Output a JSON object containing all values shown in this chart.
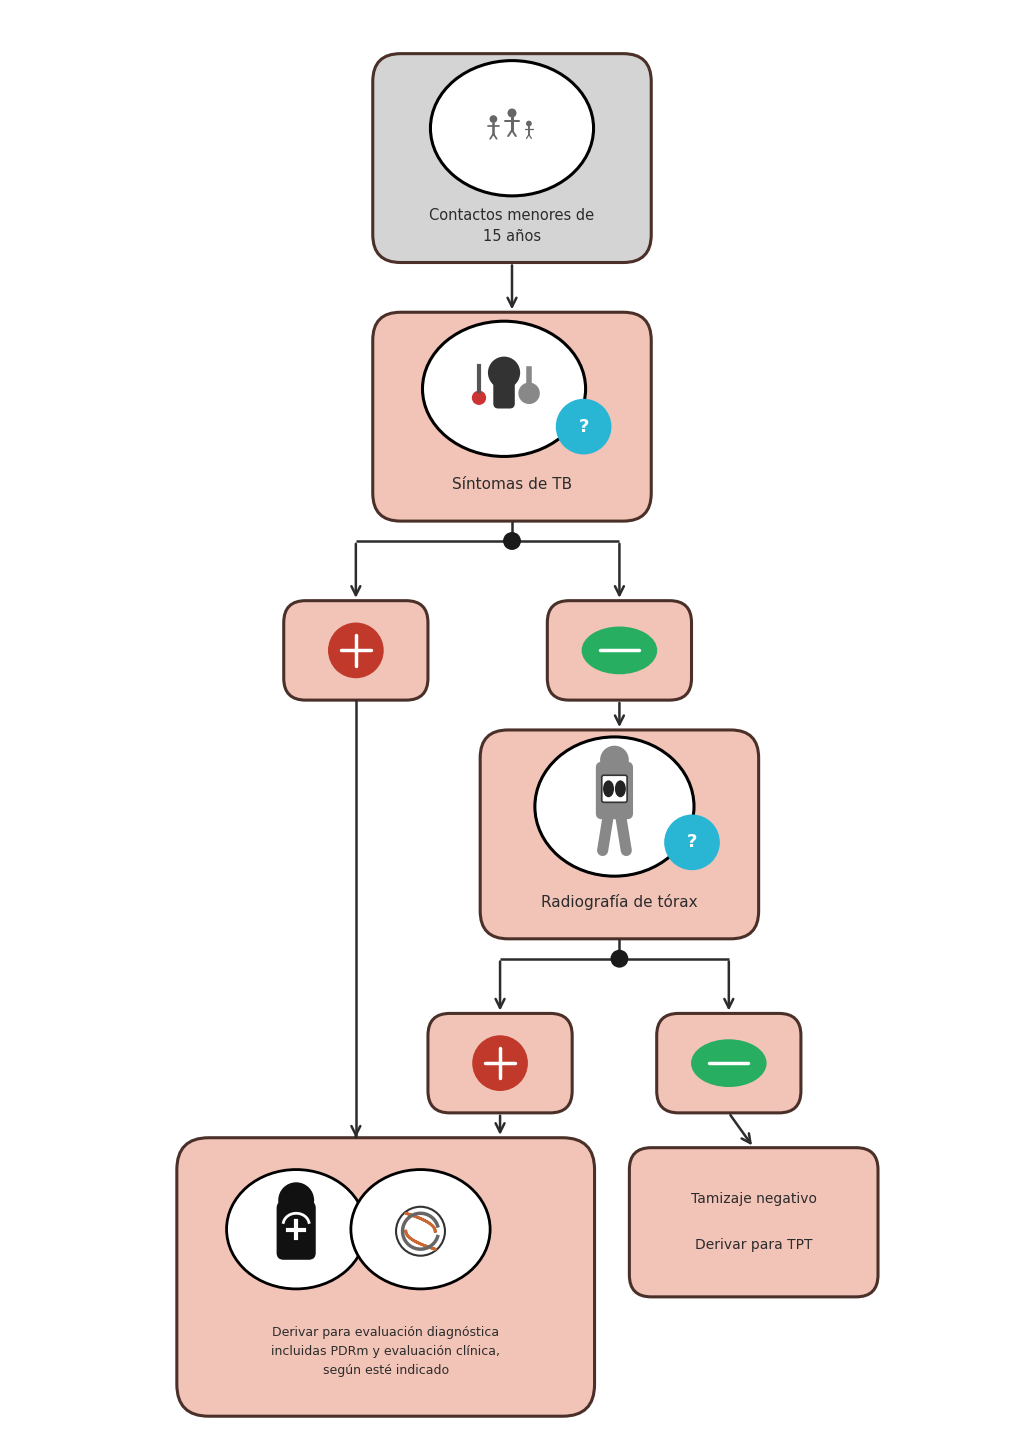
{
  "bg_color": "#ffffff",
  "salmon_box_color": "#f2c4b8",
  "salmon_box_edge": "#4a3028",
  "gray_box_color": "#d4d4d4",
  "gray_box_edge": "#4a3028",
  "positive_color": "#c0392b",
  "negative_color": "#27ae60",
  "cyan_color": "#29b6d5",
  "arrow_color": "#2c2c2c",
  "text_color": "#2c2c2c",
  "icon_gray": "#888888",
  "icon_dark": "#333333",
  "box1_label": "Contactos menores de\n15 años",
  "box2_label": "Síntomas de TB",
  "box4_label": "Radiografía de tórax",
  "box6_label": "Derivar para evaluación diagnóstica\nincluidas PDRm y evaluación clínica,\nsegún esté indicado",
  "box7_label": "Tamizaje negativo\n\nDerivar para TPT",
  "fig_width": 10.24,
  "fig_height": 14.45
}
